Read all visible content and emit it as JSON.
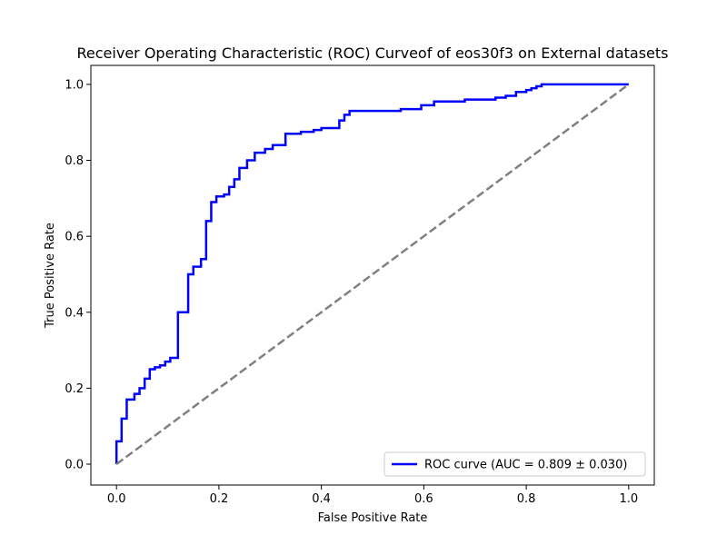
{
  "chart_data": {
    "type": "line",
    "title": "Receiver Operating Characteristic (ROC) Curveof of eos30f3 on External datasets",
    "xlabel": "False Positive Rate",
    "ylabel": "True Positive Rate",
    "xlim": [
      -0.05,
      1.05
    ],
    "ylim": [
      -0.055,
      1.05
    ],
    "xticks": [
      0.0,
      0.2,
      0.4,
      0.6,
      0.8,
      1.0
    ],
    "yticks": [
      0.0,
      0.2,
      0.4,
      0.6,
      0.8,
      1.0
    ],
    "xtick_labels": [
      "0.0",
      "0.2",
      "0.4",
      "0.6",
      "0.8",
      "1.0"
    ],
    "ytick_labels": [
      "0.0",
      "0.2",
      "0.4",
      "0.6",
      "0.8",
      "1.0"
    ],
    "grid": false,
    "legend_position": "lower-right",
    "series": [
      {
        "name": "ROC curve (AUC = 0.809 ± 0.030)",
        "color": "#0000ff",
        "style": "solid",
        "x": [
          0.0,
          0.0,
          0.01,
          0.01,
          0.02,
          0.02,
          0.035,
          0.035,
          0.045,
          0.045,
          0.055,
          0.055,
          0.065,
          0.065,
          0.075,
          0.075,
          0.085,
          0.085,
          0.095,
          0.095,
          0.105,
          0.105,
          0.12,
          0.12,
          0.14,
          0.14,
          0.15,
          0.15,
          0.165,
          0.165,
          0.175,
          0.175,
          0.185,
          0.185,
          0.195,
          0.195,
          0.21,
          0.21,
          0.22,
          0.22,
          0.23,
          0.23,
          0.24,
          0.24,
          0.255,
          0.255,
          0.27,
          0.27,
          0.29,
          0.29,
          0.305,
          0.305,
          0.33,
          0.33,
          0.36,
          0.36,
          0.385,
          0.385,
          0.4,
          0.4,
          0.435,
          0.435,
          0.445,
          0.445,
          0.455,
          0.455,
          0.555,
          0.555,
          0.595,
          0.595,
          0.62,
          0.62,
          0.68,
          0.68,
          0.74,
          0.74,
          0.76,
          0.76,
          0.78,
          0.78,
          0.8,
          0.8,
          0.81,
          0.81,
          0.82,
          0.82,
          0.83,
          0.83,
          1.0
        ],
        "y": [
          0.0,
          0.06,
          0.06,
          0.12,
          0.12,
          0.17,
          0.17,
          0.185,
          0.185,
          0.2,
          0.2,
          0.225,
          0.225,
          0.25,
          0.25,
          0.255,
          0.255,
          0.26,
          0.26,
          0.27,
          0.27,
          0.28,
          0.28,
          0.4,
          0.4,
          0.5,
          0.5,
          0.52,
          0.52,
          0.54,
          0.54,
          0.64,
          0.64,
          0.69,
          0.69,
          0.705,
          0.705,
          0.71,
          0.71,
          0.73,
          0.73,
          0.75,
          0.75,
          0.78,
          0.78,
          0.8,
          0.8,
          0.82,
          0.82,
          0.83,
          0.83,
          0.84,
          0.84,
          0.87,
          0.87,
          0.875,
          0.875,
          0.88,
          0.88,
          0.885,
          0.885,
          0.905,
          0.905,
          0.92,
          0.92,
          0.93,
          0.93,
          0.935,
          0.935,
          0.945,
          0.945,
          0.955,
          0.955,
          0.96,
          0.96,
          0.965,
          0.965,
          0.97,
          0.97,
          0.98,
          0.98,
          0.985,
          0.985,
          0.99,
          0.99,
          0.995,
          0.995,
          1.0,
          1.0
        ]
      },
      {
        "name": "",
        "color": "#808080",
        "style": "dashed",
        "x": [
          0.0,
          1.0
        ],
        "y": [
          0.0,
          1.0
        ]
      }
    ]
  }
}
